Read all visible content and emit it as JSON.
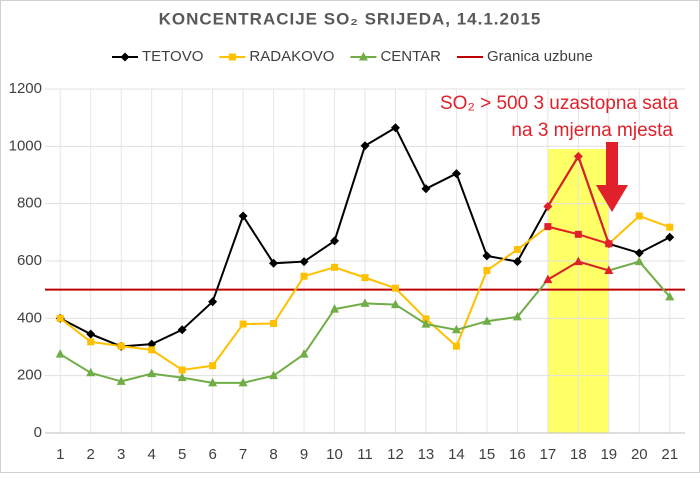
{
  "chart_data": {
    "type": "line",
    "title": "KONCENTRACIJE SO₂ SRIJEDA, 14.1.2015",
    "categories": [
      1,
      2,
      3,
      4,
      5,
      6,
      7,
      8,
      9,
      10,
      11,
      12,
      13,
      14,
      15,
      16,
      17,
      18,
      19,
      20,
      21
    ],
    "series": [
      {
        "name": "TETOVO",
        "color": "#000000",
        "marker": "diamond",
        "values": [
          400,
          345,
          302,
          310,
          360,
          458,
          757,
          592,
          598,
          670,
          1002,
          1065,
          852,
          905,
          618,
          598,
          790,
          965,
          660,
          628,
          683
        ]
      },
      {
        "name": "RADAKOVO",
        "color": "#ffc000",
        "marker": "square",
        "values": [
          400,
          318,
          303,
          290,
          220,
          235,
          380,
          382,
          547,
          578,
          542,
          505,
          398,
          303,
          567,
          640,
          720,
          693,
          660,
          757,
          718
        ]
      },
      {
        "name": "CENTAR",
        "color": "#70ad47",
        "marker": "triangle",
        "values": [
          275,
          210,
          180,
          207,
          193,
          175,
          175,
          200,
          275,
          432,
          452,
          448,
          380,
          360,
          390,
          405,
          535,
          598,
          567,
          598,
          475
        ]
      }
    ],
    "threshold": {
      "name": "Granica uzbune",
      "value": 500,
      "color": "#c00000"
    },
    "highlight": {
      "xrange": [
        17,
        19
      ],
      "color": "#ffff66",
      "line_color": "#e0202a"
    },
    "annotations": [
      "SO₂ > 500   3 uzastopna sata",
      "na 3 mjerna mjesta"
    ],
    "ylim": [
      0,
      1200
    ],
    "yticks": [
      0,
      200,
      400,
      600,
      800,
      1000,
      {
        "value": 1200,
        "label": "1200"
      }
    ],
    "grid": true
  }
}
